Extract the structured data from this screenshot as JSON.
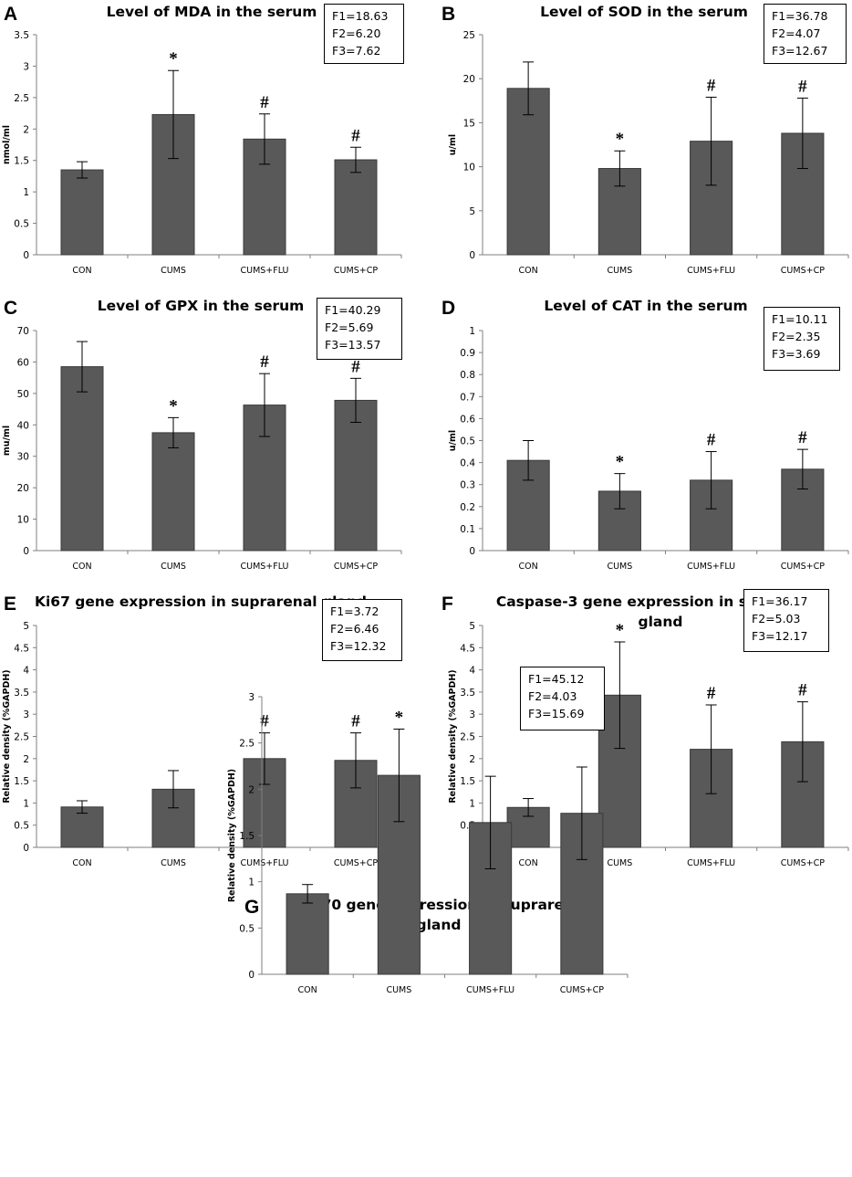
{
  "chart_data": [
    {
      "id": "A",
      "type": "bar",
      "title": "Level of MDA in the serum",
      "ylabel": "nmol/ml",
      "categories": [
        "CON",
        "CUMS",
        "CUMS+FLU",
        "CUMS+CP"
      ],
      "values": [
        1.35,
        2.23,
        1.84,
        1.51
      ],
      "errors": [
        0.13,
        0.7,
        0.4,
        0.2
      ],
      "markers": [
        "",
        "*",
        "#",
        "#"
      ],
      "ylim": [
        0,
        3.5
      ],
      "yticks": [
        "0",
        "0.5",
        "1",
        "1.5",
        "2",
        "2.5",
        "3",
        "3.5"
      ],
      "stats": [
        "F1=18.63",
        "F2=6.20",
        "F3=7.62"
      ]
    },
    {
      "id": "B",
      "type": "bar",
      "title": "Level of SOD in the serum",
      "ylabel": "u/ml",
      "categories": [
        "CON",
        "CUMS",
        "CUMS+FLU",
        "CUMS+CP"
      ],
      "values": [
        18.9,
        9.8,
        12.9,
        13.8
      ],
      "errors": [
        3.0,
        2.0,
        5.0,
        4.0
      ],
      "markers": [
        "",
        "*",
        "#",
        "#"
      ],
      "ylim": [
        0,
        25
      ],
      "yticks": [
        "0",
        "5",
        "10",
        "15",
        "20",
        "25"
      ],
      "stats": [
        "F1=36.78",
        "F2=4.07",
        "F3=12.67"
      ]
    },
    {
      "id": "C",
      "type": "bar",
      "title": "Level of GPX in the serum",
      "ylabel": "mu/ml",
      "categories": [
        "CON",
        "CUMS",
        "CUMS+FLU",
        "CUMS+CP"
      ],
      "values": [
        58.5,
        37.5,
        46.3,
        47.8
      ],
      "errors": [
        8.0,
        4.8,
        10.0,
        7.0
      ],
      "markers": [
        "",
        "*",
        "#",
        "#"
      ],
      "ylim": [
        0,
        70
      ],
      "yticks": [
        "0",
        "10",
        "20",
        "30",
        "40",
        "50",
        "60",
        "70"
      ],
      "stats": [
        "F1=40.29",
        "F2=5.69",
        "F3=13.57"
      ]
    },
    {
      "id": "D",
      "type": "bar",
      "title": "Level of CAT in the serum",
      "ylabel": "u/ml",
      "categories": [
        "CON",
        "CUMS",
        "CUMS+FLU",
        "CUMS+CP"
      ],
      "values": [
        0.41,
        0.27,
        0.32,
        0.37
      ],
      "errors": [
        0.09,
        0.08,
        0.13,
        0.09
      ],
      "markers": [
        "",
        "*",
        "#",
        "#"
      ],
      "ylim": [
        0,
        1
      ],
      "yticks": [
        "0",
        "0.1",
        "0.2",
        "0.3",
        "0.4",
        "0.5",
        "0.6",
        "0.7",
        "0.8",
        "0.9",
        "1"
      ],
      "stats": [
        "F1=10.11",
        "F2=2.35",
        "F3=3.69"
      ]
    },
    {
      "id": "E",
      "type": "bar",
      "title": "Ki67 gene expression in suprarenal gland",
      "ylabel": "Relative density (%GAPDH)",
      "categories": [
        "CON",
        "CUMS",
        "CUMS+FLU",
        "CUMS+CP"
      ],
      "values": [
        0.91,
        1.31,
        2.0,
        1.96
      ],
      "errors": [
        0.14,
        0.42,
        0.58,
        0.62
      ],
      "markers": [
        "",
        "",
        "#",
        "#"
      ],
      "ylim": [
        0,
        5
      ],
      "yticks": [
        "0",
        "0.5",
        "1",
        "1.5",
        "2",
        "2.5",
        "3",
        "3.5",
        "4",
        "4.5",
        "5"
      ],
      "stats": [
        "F1=3.72",
        "F2=6.46",
        "F3=12.32"
      ]
    },
    {
      "id": "F",
      "type": "bar",
      "title": "Caspase-3  gene expression in suprarenal gland",
      "ylabel": "Relative density (%GAPDH)",
      "categories": [
        "CON",
        "CUMS",
        "CUMS+FLU",
        "CUMS+CP"
      ],
      "values": [
        0.9,
        3.43,
        2.21,
        2.38
      ],
      "errors": [
        0.2,
        1.2,
        1.0,
        0.9
      ],
      "markers": [
        "",
        "*",
        "#",
        "#"
      ],
      "ylim": [
        0,
        5
      ],
      "yticks": [
        "0",
        "0.5",
        "1",
        "1.5",
        "2",
        "2.5",
        "3",
        "3.5",
        "4",
        "4.5",
        "5"
      ],
      "stats": [
        "F1=36.17",
        "F2=5.03",
        "F3=12.17"
      ]
    },
    {
      "id": "G",
      "type": "bar",
      "title": "HSP70 gene expression in suprarenal gland",
      "ylabel": "Relative density (%GAPDH)",
      "categories": [
        "CON",
        "CUMS",
        "CUMS+FLU",
        "CUMS+CP"
      ],
      "values": [
        0.87,
        2.15,
        1.64,
        1.74
      ],
      "errors": [
        0.1,
        0.5,
        0.5,
        0.5
      ],
      "markers": [
        "",
        "*",
        "",
        ""
      ],
      "ylim": [
        0,
        3
      ],
      "yticks": [
        "0",
        "0.5",
        "1",
        "1.5",
        "2",
        "2.5",
        "3"
      ],
      "stats": [
        "F1=45.12",
        "F2=4.03",
        "F3=15.69"
      ]
    }
  ],
  "colors": {
    "bar": "#595959",
    "bar_edge": "#3a3a3a",
    "axis": "#7f7f7f",
    "ink": "#000000"
  }
}
